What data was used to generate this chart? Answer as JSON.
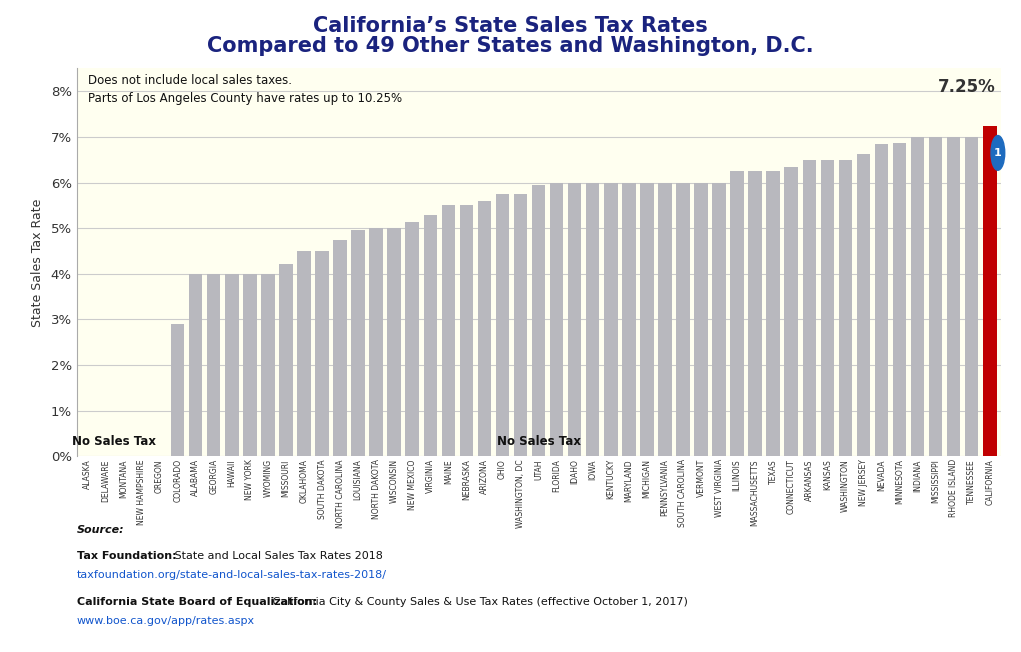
{
  "title_line1": "California’s State Sales Tax Rates",
  "title_line2": "Compared to 49 Other States and Washington, D.C.",
  "title_color": "#1a237e",
  "annotation_text": "Does not include local sales taxes.\nParts of Los Angeles County have rates up to 10.25%",
  "ca_label": "7.25%",
  "no_sales_tax_label": "No Sales Tax",
  "ylabel": "State Sales Tax Rate",
  "background_color": "#fffff0",
  "bar_color": "#b8b8be",
  "ca_color": "#c00000",
  "grid_color": "#cccccc",
  "states": [
    "ALASKA",
    "DELAWARE",
    "MONTANA",
    "NEW HAMPSHIRE",
    "OREGON",
    "COLORADO",
    "ALABAMA",
    "GEORGIA",
    "HAWAII",
    "NEW YORK",
    "WYOMING",
    "MISSOURI",
    "OKLAHOMA",
    "SOUTH DAKOTA",
    "NORTH CAROLINA",
    "LOUISIANA",
    "NORTH DAKOTA",
    "WISCONSIN",
    "NEW MEXICO",
    "VIRGINIA",
    "MAINE",
    "NEBRASKA",
    "ARIZONA",
    "OHIO",
    "WASHINGTON, DC",
    "UTAH",
    "FLORIDA",
    "IDAHO",
    "IOWA",
    "KENTUCKY",
    "MARYLAND",
    "MICHIGAN",
    "PENNSYLVANIA",
    "SOUTH CAROLINA",
    "VERMONT",
    "WEST VIRGINIA",
    "ILLINOIS",
    "MASSACHUSETTS",
    "TEXAS",
    "CONNECTICUT",
    "ARKANSAS",
    "KANSAS",
    "WASHINGTON",
    "NEW JERSEY",
    "NEVADA",
    "MINNESOTA",
    "INDIANA",
    "MISSISSIPPI",
    "RHODE ISLAND",
    "TENNESSEE",
    "CALIFORNIA"
  ],
  "values": [
    0,
    0,
    0,
    0,
    0,
    2.9,
    4.0,
    4.0,
    4.0,
    4.0,
    4.0,
    4.225,
    4.5,
    4.5,
    4.75,
    4.97,
    5.0,
    5.0,
    5.125,
    5.3,
    5.5,
    5.5,
    5.6,
    5.75,
    5.75,
    5.95,
    6.0,
    6.0,
    6.0,
    6.0,
    6.0,
    6.0,
    6.0,
    6.0,
    6.0,
    6.0,
    6.25,
    6.25,
    6.25,
    6.35,
    6.5,
    6.5,
    6.5,
    6.625,
    6.85,
    6.875,
    7.0,
    7.0,
    7.0,
    7.0,
    7.25
  ],
  "ylim": [
    0,
    8.5
  ],
  "yticks": [
    0,
    1,
    2,
    3,
    4,
    5,
    6,
    7,
    8
  ],
  "ytick_labels": [
    "0%",
    "1%",
    "2%",
    "3%",
    "4%",
    "5%",
    "6%",
    "7%",
    "8%"
  ],
  "source_italic": "Source:",
  "source_line1_bold": "Tax Foundation:",
  "source_line1_rest": " State and Local Sales Tax Rates 2018",
  "source_line1_url": "taxfoundation.org/state-and-local-sales-tax-rates-2018/",
  "source_line2_bold": "California State Board of Equalization:",
  "source_line2_rest": " California City & County Sales & Use Tax Rates (effective October 1, 2017)",
  "source_line2_url": "www.boe.ca.gov/app/rates.aspx",
  "outer_bg": "#ffffff",
  "badge_color": "#1e6bbf"
}
